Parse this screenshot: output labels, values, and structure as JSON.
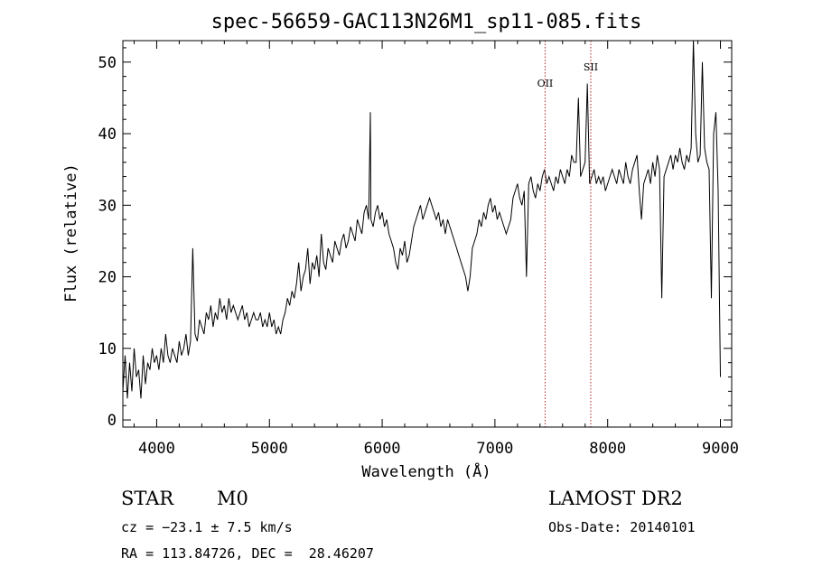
{
  "chart_data": {
    "type": "line",
    "title": "spec-56659-GAC113N26M1_sp11-085.fits",
    "xlabel": "Wavelength (Å)",
    "ylabel": "Flux (relative)",
    "xlim": [
      3700,
      9100
    ],
    "ylim": [
      -1,
      53
    ],
    "x_ticks": [
      4000,
      5000,
      6000,
      7000,
      8000,
      9000
    ],
    "y_ticks": [
      0,
      10,
      20,
      30,
      40,
      50
    ],
    "grid": false,
    "series": [
      {
        "color": "#000000",
        "x": [
          3700,
          3720,
          3740,
          3760,
          3780,
          3800,
          3820,
          3840,
          3860,
          3880,
          3900,
          3920,
          3940,
          3960,
          3980,
          4000,
          4020,
          4040,
          4060,
          4080,
          4100,
          4120,
          4140,
          4160,
          4180,
          4200,
          4220,
          4240,
          4260,
          4280,
          4300,
          4320,
          4340,
          4360,
          4380,
          4400,
          4420,
          4440,
          4460,
          4480,
          4500,
          4520,
          4540,
          4560,
          4580,
          4600,
          4620,
          4640,
          4660,
          4680,
          4700,
          4720,
          4740,
          4760,
          4780,
          4800,
          4820,
          4840,
          4860,
          4880,
          4900,
          4920,
          4940,
          4960,
          4980,
          5000,
          5020,
          5040,
          5060,
          5080,
          5100,
          5120,
          5140,
          5160,
          5180,
          5200,
          5220,
          5240,
          5260,
          5280,
          5300,
          5320,
          5340,
          5360,
          5380,
          5400,
          5420,
          5440,
          5460,
          5480,
          5500,
          5520,
          5540,
          5560,
          5580,
          5600,
          5620,
          5640,
          5660,
          5680,
          5700,
          5720,
          5740,
          5760,
          5780,
          5800,
          5820,
          5840,
          5860,
          5880,
          5895,
          5900,
          5920,
          5940,
          5960,
          5980,
          6000,
          6020,
          6040,
          6060,
          6080,
          6100,
          6120,
          6140,
          6160,
          6180,
          6200,
          6220,
          6240,
          6260,
          6280,
          6300,
          6320,
          6340,
          6360,
          6380,
          6400,
          6420,
          6440,
          6460,
          6480,
          6500,
          6520,
          6540,
          6560,
          6580,
          6600,
          6620,
          6640,
          6660,
          6680,
          6700,
          6720,
          6740,
          6760,
          6780,
          6800,
          6820,
          6840,
          6860,
          6880,
          6900,
          6920,
          6940,
          6960,
          6980,
          7000,
          7020,
          7040,
          7060,
          7080,
          7100,
          7120,
          7140,
          7160,
          7180,
          7200,
          7220,
          7240,
          7260,
          7280,
          7300,
          7320,
          7340,
          7360,
          7380,
          7400,
          7420,
          7440,
          7460,
          7480,
          7500,
          7520,
          7540,
          7560,
          7580,
          7600,
          7620,
          7640,
          7660,
          7680,
          7700,
          7720,
          7740,
          7760,
          7780,
          7800,
          7820,
          7840,
          7860,
          7880,
          7900,
          7920,
          7940,
          7960,
          7980,
          8000,
          8020,
          8040,
          8060,
          8080,
          8100,
          8120,
          8140,
          8160,
          8180,
          8200,
          8220,
          8240,
          8260,
          8280,
          8300,
          8320,
          8340,
          8360,
          8380,
          8400,
          8420,
          8440,
          8460,
          8480,
          8500,
          8520,
          8540,
          8560,
          8580,
          8600,
          8620,
          8640,
          8660,
          8680,
          8700,
          8720,
          8740,
          8760,
          8780,
          8800,
          8820,
          8840,
          8860,
          8880,
          8900,
          8920,
          8940,
          8960,
          8980,
          9000
        ],
        "y": [
          4,
          9,
          3,
          8,
          4,
          10,
          6,
          7,
          3,
          9,
          5,
          8,
          7,
          10,
          8,
          9,
          7,
          10,
          8,
          12,
          9,
          8,
          10,
          9,
          8,
          11,
          9,
          10,
          12,
          9,
          11,
          24,
          12,
          11,
          14,
          13,
          12,
          15,
          14,
          16,
          13,
          15,
          14,
          17,
          15,
          16,
          14,
          17,
          15,
          16,
          15,
          14,
          15,
          16,
          14,
          15,
          13,
          14,
          15,
          14,
          14,
          15,
          13,
          14,
          13,
          15,
          13,
          14,
          12,
          13,
          12,
          14,
          15,
          17,
          16,
          18,
          17,
          19,
          22,
          18,
          20,
          21,
          24,
          19,
          22,
          21,
          23,
          20,
          26,
          22,
          21,
          24,
          23,
          22,
          25,
          24,
          23,
          25,
          26,
          24,
          25,
          27,
          26,
          25,
          28,
          27,
          26,
          29,
          30,
          28,
          43,
          28,
          27,
          29,
          30,
          28,
          29,
          27,
          28,
          26,
          25,
          24,
          22,
          21,
          24,
          23,
          25,
          22,
          23,
          25,
          27,
          28,
          29,
          30,
          28,
          29,
          30,
          31,
          30,
          29,
          28,
          29,
          27,
          28,
          26,
          28,
          27,
          26,
          25,
          24,
          23,
          22,
          21,
          20,
          18,
          20,
          24,
          25,
          26,
          28,
          27,
          29,
          28,
          30,
          31,
          29,
          30,
          28,
          29,
          28,
          27,
          26,
          27,
          28,
          31,
          32,
          33,
          31,
          30,
          32,
          20,
          33,
          34,
          32,
          31,
          33,
          32,
          34,
          35,
          33,
          34,
          33,
          32,
          34,
          33,
          35,
          34,
          33,
          35,
          34,
          37,
          36,
          36,
          45,
          34,
          35,
          36,
          47,
          33,
          34,
          35,
          33,
          34,
          33,
          34,
          32,
          33,
          34,
          35,
          34,
          33,
          35,
          34,
          33,
          36,
          34,
          33,
          35,
          36,
          37,
          32,
          28,
          33,
          34,
          35,
          33,
          36,
          34,
          37,
          35,
          17,
          34,
          35,
          36,
          37,
          35,
          37,
          36,
          38,
          36,
          35,
          37,
          36,
          38,
          53,
          40,
          36,
          37,
          50,
          38,
          36,
          35,
          17,
          40,
          43,
          32,
          6
        ]
      }
    ],
    "annotations": [
      {
        "label": "OII",
        "x": 7445
      },
      {
        "label": "SII",
        "x": 7850
      }
    ]
  },
  "info": {
    "class": "STAR",
    "subclass": "M0",
    "survey": "LAMOST DR2",
    "cz": "cz = −23.1 ± 7.5 km/s",
    "obs_date": "Obs-Date: 20140101",
    "coords": "RA = 113.84726, DEC =  28.46207"
  }
}
